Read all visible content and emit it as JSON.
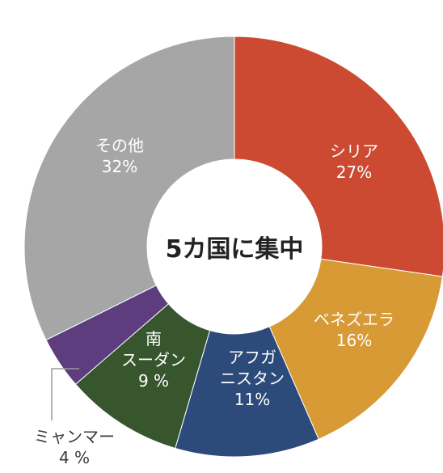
{
  "chart_data": {
    "type": "pie",
    "center_text": "5カ国に集中",
    "slices": [
      {
        "name": "シリア",
        "label_lines": [
          "シリア",
          "27%"
        ],
        "value": 27,
        "color": "#cc4a32"
      },
      {
        "name": "ベネズエラ",
        "label_lines": [
          "ベネズエラ",
          "16%"
        ],
        "value": 16,
        "color": "#d89a35"
      },
      {
        "name": "アフガニスタン",
        "label_lines": [
          "アフガ",
          "ニスタン",
          "11%"
        ],
        "value": 11,
        "color": "#2d4b7a"
      },
      {
        "name": "南スーダン",
        "label_lines": [
          "南",
          "スーダン",
          "9 %"
        ],
        "value": 9,
        "color": "#37562e"
      },
      {
        "name": "ミャンマー",
        "label_lines": [
          "ミャンマー",
          "4 %"
        ],
        "value": 4,
        "color": "#5e3d7f",
        "label_outside": true
      },
      {
        "name": "その他",
        "label_lines": [
          "その他",
          "32%"
        ],
        "value": 32,
        "color": "#a6a6a6"
      }
    ]
  }
}
